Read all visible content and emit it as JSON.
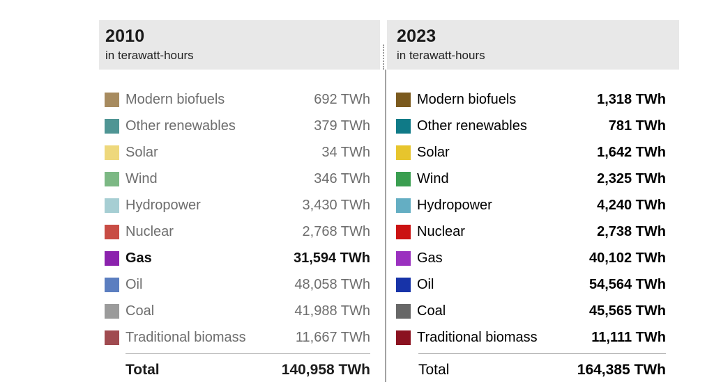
{
  "panels": [
    {
      "title": "2010",
      "subtitle": "in terawatt-hours",
      "rows": [
        {
          "label": "Modern biofuels",
          "value": "692 TWh",
          "color": "#a78b5f",
          "bold": false,
          "icon": "modern-biofuels-swatch"
        },
        {
          "label": "Other renewables",
          "value": "379 TWh",
          "color": "#4f9594",
          "bold": false,
          "icon": "other-renewables-swatch"
        },
        {
          "label": "Solar",
          "value": "34 TWh",
          "color": "#eed87c",
          "bold": false,
          "icon": "solar-swatch"
        },
        {
          "label": "Wind",
          "value": "346 TWh",
          "color": "#7cb884",
          "bold": false,
          "icon": "wind-swatch"
        },
        {
          "label": "Hydropower",
          "value": "3,430 TWh",
          "color": "#a6ced3",
          "bold": false,
          "icon": "hydropower-swatch"
        },
        {
          "label": "Nuclear",
          "value": "2,768 TWh",
          "color": "#c84c44",
          "bold": false,
          "icon": "nuclear-swatch"
        },
        {
          "label": "Gas",
          "value": "31,594 TWh",
          "color": "#8b22ad",
          "bold": true,
          "icon": "gas-swatch"
        },
        {
          "label": "Oil",
          "value": "48,058 TWh",
          "color": "#5b7ec0",
          "bold": false,
          "icon": "oil-swatch"
        },
        {
          "label": "Coal",
          "value": "41,988 TWh",
          "color": "#9b9b9b",
          "bold": false,
          "icon": "coal-swatch"
        },
        {
          "label": "Traditional biomass",
          "value": "11,667 TWh",
          "color": "#a04b50",
          "bold": false,
          "icon": "traditional-biomass-swatch"
        }
      ],
      "total_label": "Total",
      "total_value": "140,958 TWh"
    },
    {
      "title": "2023",
      "subtitle": "in terawatt-hours",
      "rows": [
        {
          "label": "Modern biofuels",
          "value": "1,318 TWh",
          "color": "#7b5a1e",
          "bold": false,
          "icon": "modern-biofuels-swatch"
        },
        {
          "label": "Other renewables",
          "value": "781 TWh",
          "color": "#0f7a87",
          "bold": false,
          "icon": "other-renewables-swatch"
        },
        {
          "label": "Solar",
          "value": "1,642 TWh",
          "color": "#e7c52d",
          "bold": false,
          "icon": "solar-swatch"
        },
        {
          "label": "Wind",
          "value": "2,325 TWh",
          "color": "#3a9e50",
          "bold": false,
          "icon": "wind-swatch"
        },
        {
          "label": "Hydropower",
          "value": "4,240 TWh",
          "color": "#64aec3",
          "bold": false,
          "icon": "hydropower-swatch"
        },
        {
          "label": "Nuclear",
          "value": "2,738 TWh",
          "color": "#cb1212",
          "bold": false,
          "icon": "nuclear-swatch"
        },
        {
          "label": "Gas",
          "value": "40,102 TWh",
          "color": "#9a30bf",
          "bold": false,
          "icon": "gas-swatch"
        },
        {
          "label": "Oil",
          "value": "54,564 TWh",
          "color": "#1733a8",
          "bold": false,
          "icon": "oil-swatch"
        },
        {
          "label": "Coal",
          "value": "45,565 TWh",
          "color": "#676767",
          "bold": false,
          "icon": "coal-swatch"
        },
        {
          "label": "Traditional biomass",
          "value": "11,111 TWh",
          "color": "#8b1220",
          "bold": false,
          "icon": "traditional-biomass-swatch"
        }
      ],
      "total_label": "Total",
      "total_value": "164,385 TWh"
    }
  ],
  "colors": {
    "header_background": "#e8e8e8",
    "muted_text": "#6e6e6e",
    "strong_text": "#000000",
    "divider": "#a3a3a3"
  },
  "chart_data": {
    "type": "table",
    "title": "",
    "unit": "TWh",
    "categories": [
      "Modern biofuels",
      "Other renewables",
      "Solar",
      "Wind",
      "Hydropower",
      "Nuclear",
      "Gas",
      "Oil",
      "Coal",
      "Traditional biomass"
    ],
    "series": [
      {
        "name": "2010",
        "values": [
          692,
          379,
          34,
          346,
          3430,
          2768,
          31594,
          48058,
          41988,
          11667
        ],
        "total": 140958
      },
      {
        "name": "2023",
        "values": [
          1318,
          781,
          1642,
          2325,
          4240,
          2738,
          40102,
          54564,
          45565,
          11111
        ],
        "total": 164385
      }
    ],
    "highlighted": [
      {
        "series": "2010",
        "category": "Gas"
      }
    ]
  }
}
